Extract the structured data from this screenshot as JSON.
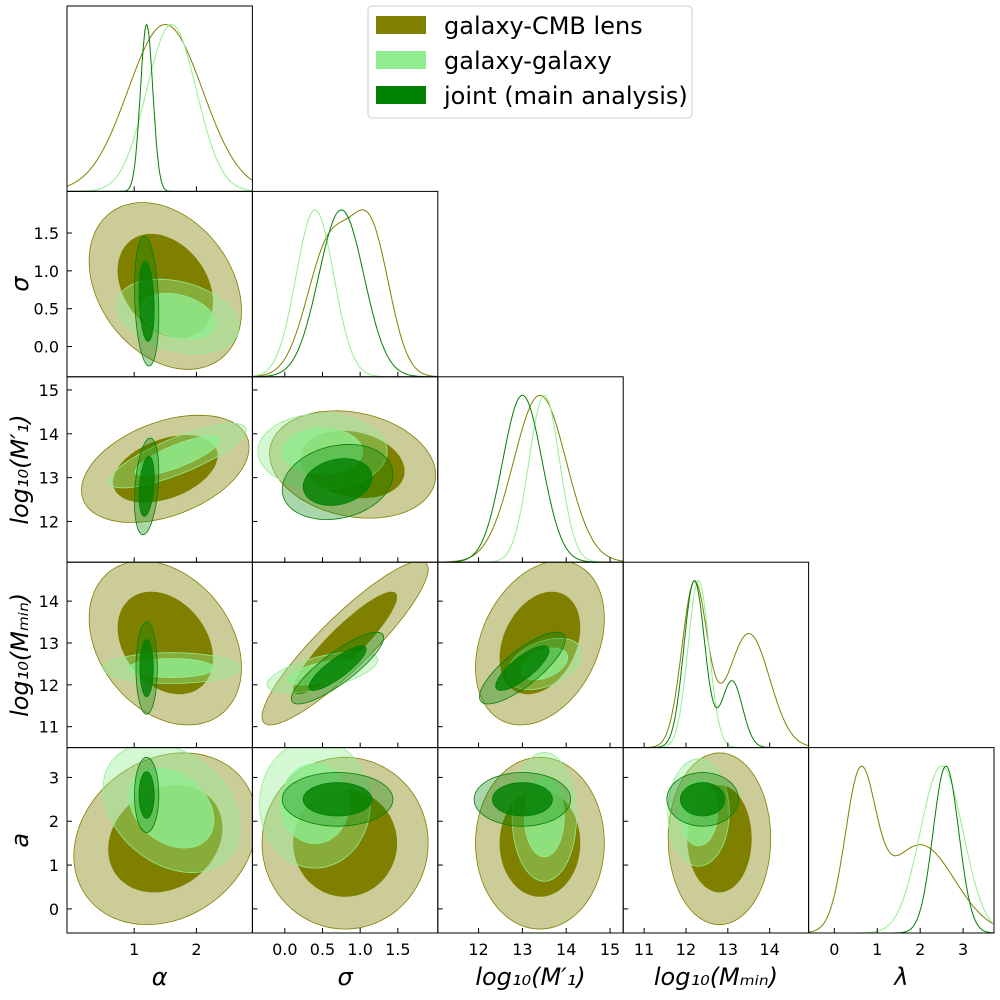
{
  "chart_data": {
    "type": "corner",
    "legend_loc": "upper center",
    "series": [
      {
        "name": "galaxy-CMB lens",
        "color": "#808000"
      },
      {
        "name": "galaxy-galaxy",
        "color": "#90ee90"
      },
      {
        "name": "joint (main analysis)",
        "color": "#008000"
      }
    ],
    "params": [
      {
        "xlabel": "α",
        "xlim": [
          -0.08,
          2.9
        ],
        "xticks": [
          1,
          2
        ]
      },
      {
        "xlabel": "σ",
        "ylabel": "σ",
        "xlim": [
          -0.43,
          2.03
        ],
        "ylim": [
          -0.4,
          2.05
        ],
        "xticks": [
          {
            "value": 0,
            "label": "0.0"
          },
          {
            "value": 0.5,
            "label": "0.5"
          },
          {
            "value": 1,
            "label": "1.0"
          },
          {
            "value": 1.5,
            "label": "1.5"
          }
        ],
        "yticks": [
          {
            "value": 0,
            "label": "0.0"
          },
          {
            "value": 0.5,
            "label": "0.5"
          },
          {
            "value": 1,
            "label": "1.0"
          },
          {
            "value": 1.5,
            "label": "1.5"
          }
        ]
      },
      {
        "xlabel": "log₁₀(M′₁)",
        "ylabel": "log₁₀(M′₁)",
        "xlim": [
          11.07,
          15.3
        ],
        "ylim": [
          11.07,
          15.3
        ],
        "xticks": [
          12,
          13,
          14,
          15
        ],
        "yticks": [
          12,
          13,
          14,
          15
        ]
      },
      {
        "xlabel": "log₁₀(Mₘᵢₙ)",
        "ylabel": "log₁₀(Mₘᵢₙ)",
        "xlim": [
          10.5,
          14.93
        ],
        "ylim": [
          10.5,
          14.93
        ],
        "xticks": [
          11,
          12,
          13,
          14
        ],
        "yticks": [
          11,
          12,
          13,
          14
        ]
      },
      {
        "xlabel": "λ",
        "ylabel": "a",
        "xlim": [
          -0.6,
          3.72
        ],
        "ylim": [
          -0.55,
          3.68
        ],
        "xticks": [
          0,
          1,
          2,
          3
        ],
        "yticks": [
          0,
          1,
          2,
          3
        ]
      }
    ],
    "marginals": [
      {
        "series": [
          [
            [
              1.5,
              0.6,
              1
            ]
          ],
          [
            [
              1.6,
              0.4,
              1
            ]
          ],
          [
            [
              1.2,
              0.1,
              1
            ]
          ]
        ]
      },
      {
        "series": [
          [
            [
              0.6,
              0.3,
              1
            ],
            [
              1.15,
              0.25,
              1
            ]
          ],
          [
            [
              0.4,
              0.25,
              1
            ]
          ],
          [
            [
              0.75,
              0.3,
              1
            ]
          ]
        ]
      },
      {
        "series": [
          [
            [
              13.4,
              0.6,
              1
            ]
          ],
          [
            [
              13.5,
              0.35,
              1
            ]
          ],
          [
            [
              13.0,
              0.45,
              1
            ]
          ]
        ]
      },
      {
        "series": [
          [
            [
              12.2,
              0.3,
              1
            ],
            [
              13.5,
              0.5,
              0.7
            ]
          ],
          [
            [
              12.3,
              0.25,
              1
            ]
          ],
          [
            [
              12.2,
              0.25,
              1
            ],
            [
              13.1,
              0.25,
              0.4
            ]
          ]
        ]
      },
      {
        "series": [
          [
            [
              0.6,
              0.35,
              1
            ],
            [
              2.0,
              0.8,
              0.6
            ]
          ],
          [
            [
              2.5,
              0.5,
              1
            ]
          ],
          [
            [
              2.6,
              0.3,
              1
            ]
          ]
        ]
      }
    ],
    "contours": [
      {
        "series": [
          [
            1.5,
            0.8,
            0.5,
            0.45,
            -0.3
          ],
          [
            1.7,
            0.4,
            0.4,
            0.2,
            -0.3
          ],
          [
            1.2,
            0.6,
            0.08,
            0.35,
            -0.2
          ]
        ]
      },
      {
        "series": [
          [
            1.5,
            13.2,
            0.55,
            0.5,
            0.4
          ],
          [
            1.7,
            13.5,
            0.45,
            0.3,
            0.8
          ],
          [
            1.2,
            12.8,
            0.08,
            0.45,
            0.3
          ]
        ]
      },
      {
        "series": [
          [
            0.9,
            13.3,
            0.45,
            0.5,
            -0.2
          ],
          [
            0.5,
            13.6,
            0.35,
            0.35,
            0
          ],
          [
            0.7,
            12.9,
            0.3,
            0.35,
            0.2
          ]
        ]
      },
      {
        "series": [
          [
            1.5,
            13.0,
            0.5,
            0.8,
            -0.3
          ],
          [
            1.6,
            12.4,
            0.45,
            0.15,
            0
          ],
          [
            1.2,
            12.4,
            0.07,
            0.45,
            0
          ]
        ]
      },
      {
        "series": [
          [
            0.8,
            13.0,
            0.45,
            0.8,
            0.9
          ],
          [
            0.5,
            12.3,
            0.3,
            0.2,
            0.6
          ],
          [
            0.7,
            12.4,
            0.25,
            0.35,
            0.85
          ]
        ]
      },
      {
        "series": [
          [
            13.4,
            13.0,
            0.6,
            0.8,
            0.3
          ],
          [
            13.5,
            12.5,
            0.35,
            0.25,
            0.4
          ],
          [
            13.0,
            12.4,
            0.4,
            0.35,
            0.8
          ]
        ]
      },
      {
        "series": [
          [
            1.5,
            1.6,
            0.6,
            0.8,
            0.2
          ],
          [
            1.6,
            2.3,
            0.45,
            0.6,
            -0.3
          ],
          [
            1.2,
            2.6,
            0.08,
            0.35,
            0
          ]
        ]
      },
      {
        "series": [
          [
            0.8,
            1.5,
            0.45,
            0.8,
            0
          ],
          [
            0.4,
            2.4,
            0.3,
            0.6,
            0
          ],
          [
            0.7,
            2.5,
            0.3,
            0.25,
            0
          ]
        ]
      },
      {
        "series": [
          [
            13.4,
            1.5,
            0.6,
            0.8,
            0
          ],
          [
            13.5,
            2.1,
            0.3,
            0.6,
            0
          ],
          [
            13.0,
            2.5,
            0.45,
            0.25,
            0
          ]
        ]
      },
      {
        "series": [
          [
            12.8,
            1.6,
            0.5,
            0.8,
            0
          ],
          [
            12.3,
            2.2,
            0.3,
            0.5,
            0
          ],
          [
            12.4,
            2.5,
            0.35,
            0.25,
            0
          ]
        ]
      }
    ]
  }
}
